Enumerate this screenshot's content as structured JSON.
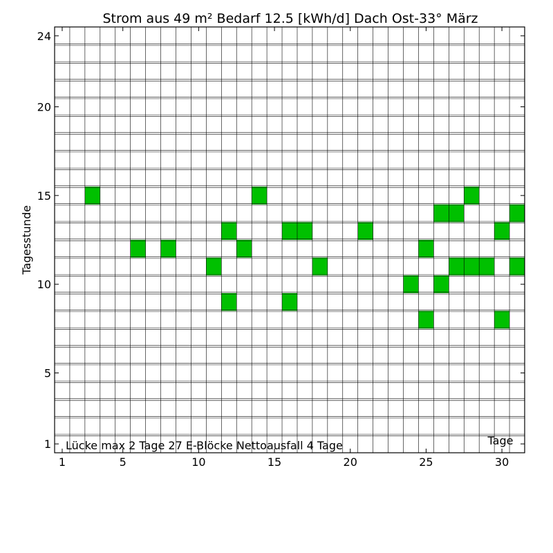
{
  "chart_data": {
    "type": "heatmap",
    "title": "Strom aus 49 m² Bedarf 12.5 [kWh/d] Dach Ost-33°  März",
    "xlabel": "Tage",
    "ylabel": "Tagesstunde",
    "annotation": "Lücke max 2 Tage  27 E-Blöcke  Nettoausfall 4 Tage",
    "x_ticks": [
      "1",
      "5",
      "10",
      "15",
      "20",
      "25",
      "30"
    ],
    "y_ticks": [
      "1",
      "5",
      "10",
      "15",
      "20",
      "24"
    ],
    "xlim": [
      1,
      31
    ],
    "ylim": [
      1,
      24
    ],
    "grid": true,
    "cell_fill_color": "#00c000",
    "grid_color": "#000000",
    "cells": [
      {
        "day": 3,
        "hour": 15
      },
      {
        "day": 14,
        "hour": 15
      },
      {
        "day": 28,
        "hour": 15
      },
      {
        "day": 26,
        "hour": 14
      },
      {
        "day": 27,
        "hour": 14
      },
      {
        "day": 31,
        "hour": 14
      },
      {
        "day": 12,
        "hour": 13
      },
      {
        "day": 16,
        "hour": 13
      },
      {
        "day": 17,
        "hour": 13
      },
      {
        "day": 21,
        "hour": 13
      },
      {
        "day": 30,
        "hour": 13
      },
      {
        "day": 6,
        "hour": 12
      },
      {
        "day": 8,
        "hour": 12
      },
      {
        "day": 13,
        "hour": 12
      },
      {
        "day": 25,
        "hour": 12
      },
      {
        "day": 11,
        "hour": 11
      },
      {
        "day": 18,
        "hour": 11
      },
      {
        "day": 27,
        "hour": 11
      },
      {
        "day": 28,
        "hour": 11
      },
      {
        "day": 29,
        "hour": 11
      },
      {
        "day": 31,
        "hour": 11
      },
      {
        "day": 24,
        "hour": 10
      },
      {
        "day": 26,
        "hour": 10
      },
      {
        "day": 12,
        "hour": 9
      },
      {
        "day": 16,
        "hour": 9
      },
      {
        "day": 25,
        "hour": 8
      },
      {
        "day": 30,
        "hour": 8
      }
    ]
  }
}
